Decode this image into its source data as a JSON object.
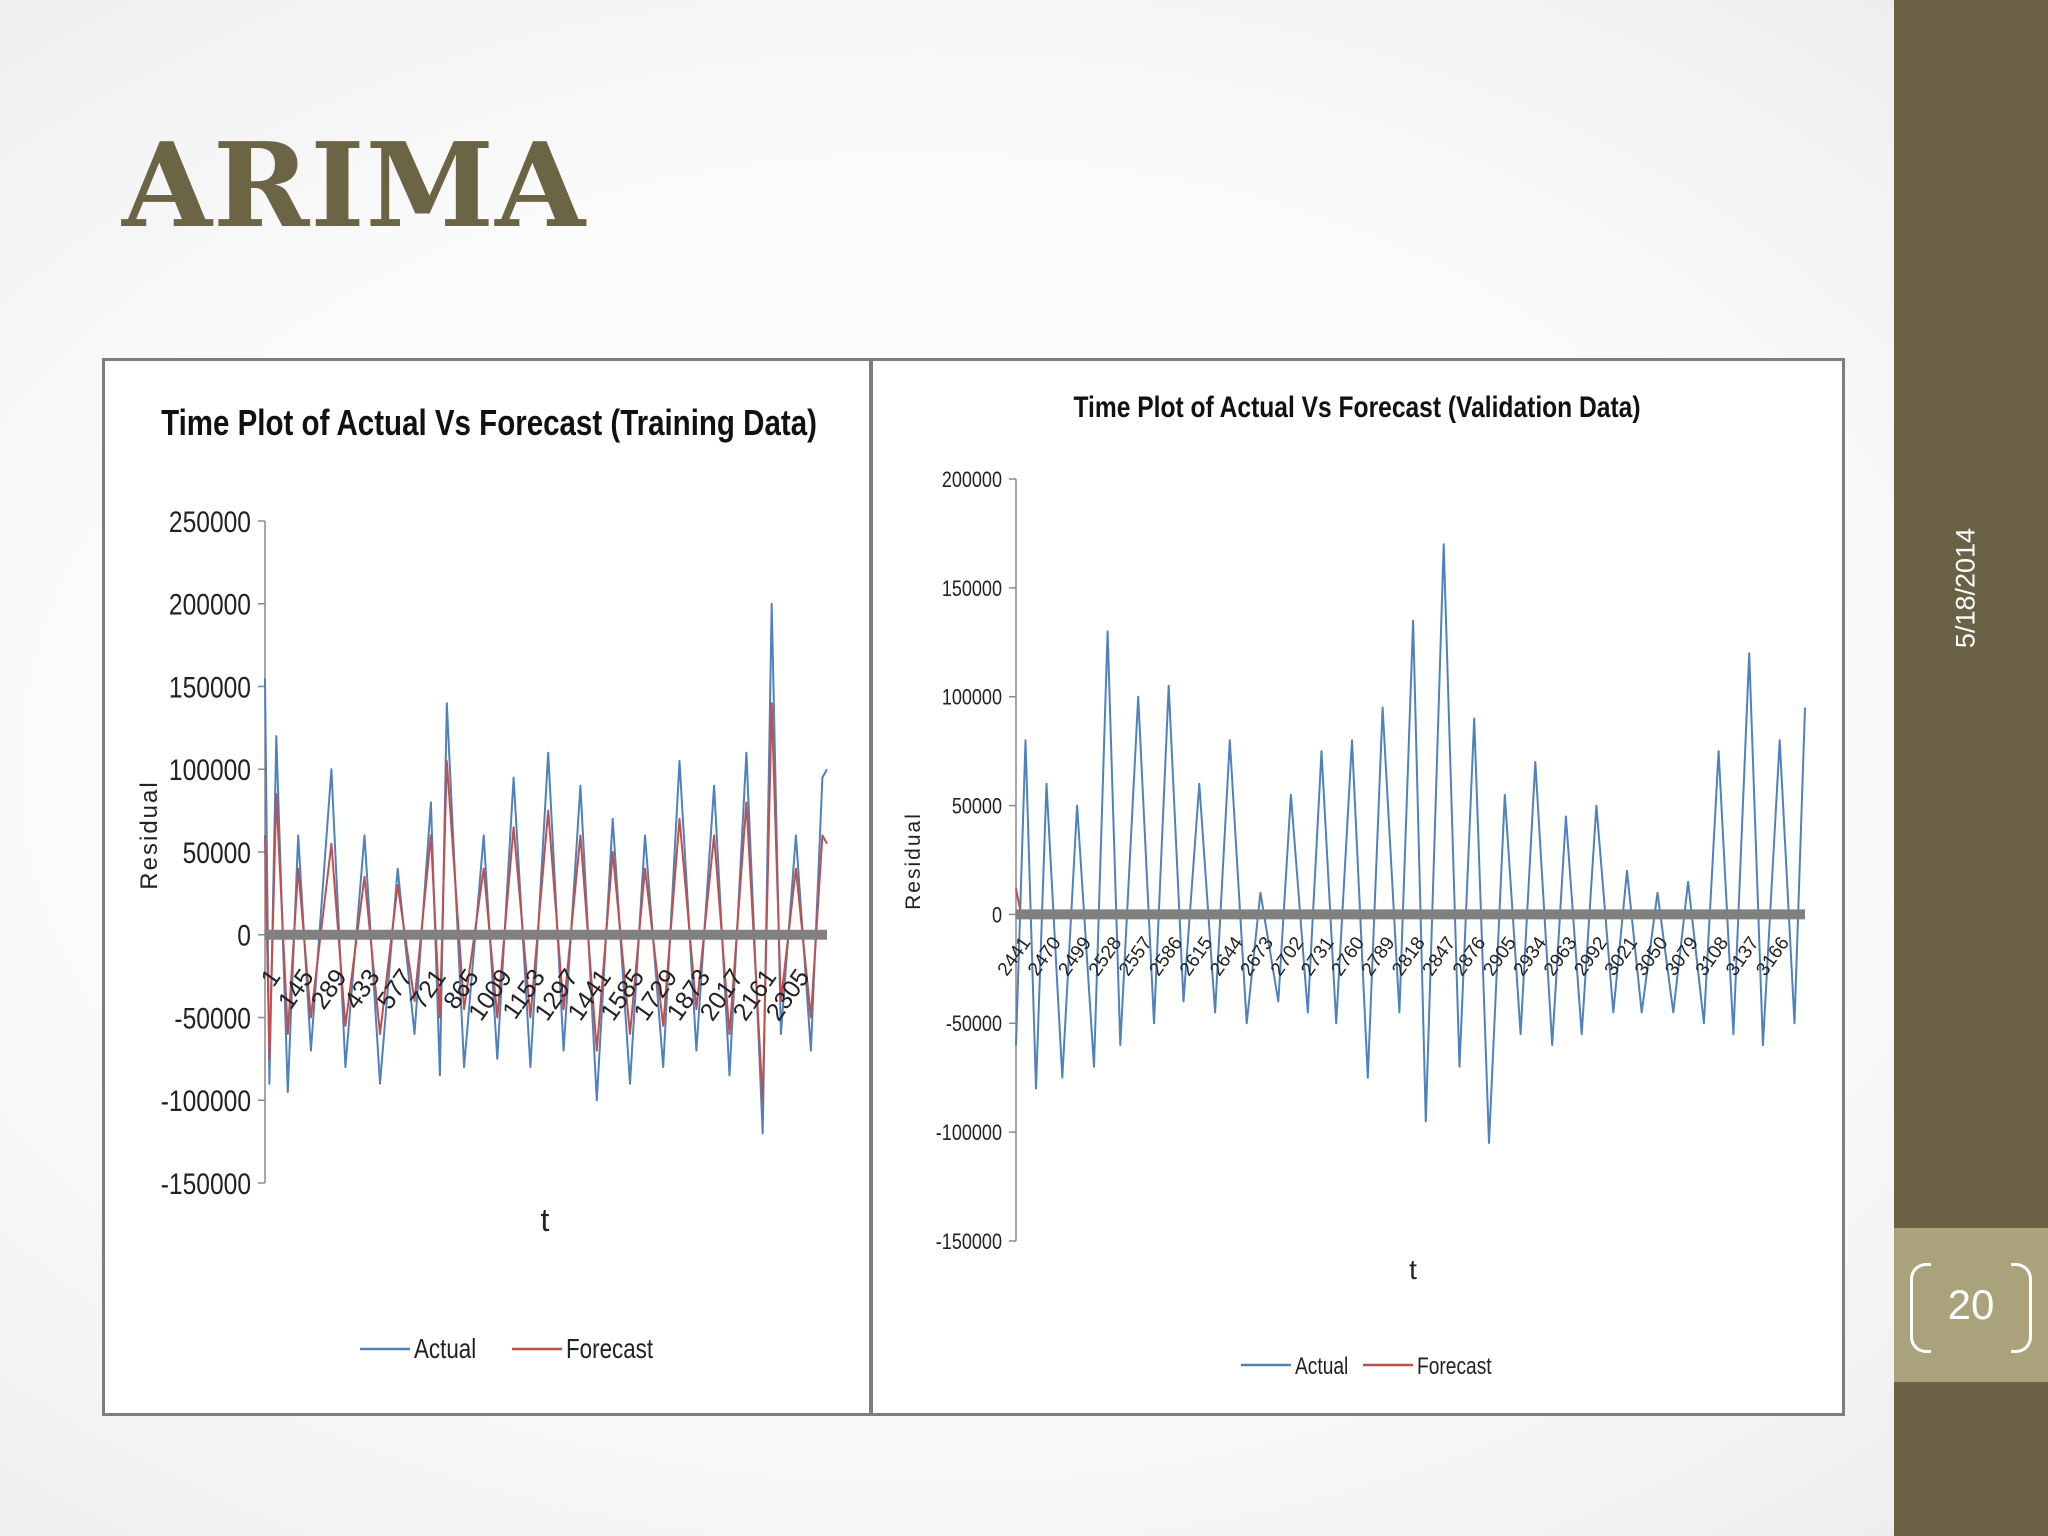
{
  "slide": {
    "title": "ARIMA",
    "date": "5/18/2014",
    "page_number": "20"
  },
  "colors": {
    "sidebar": "#6b6145",
    "page_box": "#a9a27a",
    "title": "#6b6445",
    "actual": "#4f81bd",
    "forecast": "#c0504d",
    "baseline": "#808080"
  },
  "chart_data": [
    {
      "type": "line",
      "title": "Time Plot of Actual Vs Forecast (Training Data)",
      "xlabel": "t",
      "ylabel": "Residual",
      "ylim": [
        -150000,
        250000
      ],
      "yticks": [
        -150000,
        -100000,
        -50000,
        0,
        50000,
        100000,
        150000,
        200000,
        250000
      ],
      "ytick_labels": [
        "-150000",
        "-100000",
        "-50000",
        "0",
        "50000",
        "100000",
        "150000",
        "200000",
        "250000"
      ],
      "xlim": [
        1,
        2440
      ],
      "xtick_labels": [
        "1",
        "145",
        "289",
        "433",
        "577",
        "721",
        "865",
        "1009",
        "1153",
        "1297",
        "1441",
        "1585",
        "1729",
        "1873",
        "2017",
        "2161",
        "2305"
      ],
      "legend": "bottom",
      "series": [
        {
          "name": "Actual",
          "color": "#4f81bd",
          "x": [
            1,
            20,
            50,
            100,
            145,
            200,
            289,
            350,
            433,
            500,
            577,
            650,
            721,
            760,
            790,
            865,
            950,
            1009,
            1080,
            1153,
            1230,
            1297,
            1370,
            1441,
            1510,
            1585,
            1650,
            1729,
            1800,
            1873,
            1950,
            2017,
            2090,
            2161,
            2200,
            2240,
            2305,
            2370,
            2420,
            2440
          ],
          "values": [
            155000,
            -90000,
            120000,
            -95000,
            60000,
            -70000,
            100000,
            -80000,
            60000,
            -90000,
            40000,
            -60000,
            80000,
            -85000,
            140000,
            -80000,
            60000,
            -75000,
            95000,
            -80000,
            110000,
            -70000,
            90000,
            -100000,
            70000,
            -90000,
            60000,
            -80000,
            105000,
            -70000,
            90000,
            -85000,
            110000,
            -120000,
            200000,
            -60000,
            60000,
            -70000,
            95000,
            100000
          ]
        },
        {
          "name": "Forecast",
          "color": "#c0504d",
          "x": [
            1,
            20,
            50,
            100,
            145,
            200,
            289,
            350,
            433,
            500,
            577,
            650,
            721,
            760,
            790,
            865,
            950,
            1009,
            1080,
            1153,
            1230,
            1297,
            1370,
            1441,
            1510,
            1585,
            1650,
            1729,
            1800,
            1873,
            1950,
            2017,
            2090,
            2161,
            2200,
            2240,
            2305,
            2370,
            2420,
            2440
          ],
          "values": [
            60000,
            -75000,
            85000,
            -60000,
            40000,
            -50000,
            55000,
            -55000,
            35000,
            -60000,
            30000,
            -40000,
            60000,
            -50000,
            105000,
            -45000,
            40000,
            -50000,
            65000,
            -50000,
            75000,
            -45000,
            60000,
            -70000,
            50000,
            -60000,
            40000,
            -55000,
            70000,
            -45000,
            60000,
            -60000,
            80000,
            -100000,
            140000,
            -40000,
            40000,
            -50000,
            60000,
            55000
          ]
        }
      ]
    },
    {
      "type": "line",
      "title": "Time Plot of Actual Vs Forecast (Validation Data)",
      "xlabel": "t",
      "ylabel": "Residual",
      "ylim": [
        -150000,
        200000
      ],
      "yticks": [
        -150000,
        -100000,
        -50000,
        0,
        50000,
        100000,
        150000,
        200000
      ],
      "ytick_labels": [
        "-150000",
        "-100000",
        "-50000",
        "0",
        "50000",
        "100000",
        "150000",
        "200000"
      ],
      "xlim": [
        2441,
        3190
      ],
      "xtick_labels": [
        "2441",
        "2470",
        "2499",
        "2528",
        "2557",
        "2586",
        "2615",
        "2644",
        "2673",
        "2702",
        "2731",
        "2760",
        "2789",
        "2818",
        "2847",
        "2876",
        "2905",
        "2934",
        "2963",
        "2992",
        "3021",
        "3050",
        "3079",
        "3108",
        "3137",
        "3166"
      ],
      "legend": "bottom",
      "series": [
        {
          "name": "Actual",
          "color": "#4f81bd",
          "x": [
            2441,
            2450,
            2460,
            2470,
            2485,
            2499,
            2515,
            2528,
            2540,
            2557,
            2572,
            2586,
            2600,
            2615,
            2630,
            2644,
            2660,
            2673,
            2690,
            2702,
            2718,
            2731,
            2745,
            2760,
            2775,
            2789,
            2805,
            2818,
            2830,
            2847,
            2862,
            2876,
            2890,
            2905,
            2920,
            2934,
            2950,
            2963,
            2978,
            2992,
            3008,
            3021,
            3035,
            3050,
            3065,
            3079,
            3094,
            3108,
            3122,
            3137,
            3150,
            3166,
            3180,
            3190
          ],
          "values": [
            -60000,
            80000,
            -80000,
            60000,
            -75000,
            50000,
            -70000,
            130000,
            -60000,
            100000,
            -50000,
            105000,
            -40000,
            60000,
            -45000,
            80000,
            -50000,
            10000,
            -40000,
            55000,
            -45000,
            75000,
            -50000,
            80000,
            -75000,
            95000,
            -45000,
            135000,
            -95000,
            170000,
            -70000,
            90000,
            -105000,
            55000,
            -55000,
            70000,
            -60000,
            45000,
            -55000,
            50000,
            -45000,
            20000,
            -45000,
            10000,
            -45000,
            15000,
            -50000,
            75000,
            -55000,
            120000,
            -60000,
            80000,
            -50000,
            95000
          ]
        },
        {
          "name": "Forecast",
          "color": "#c0504d",
          "x": [
            2441,
            2445,
            2450,
            2460,
            2600,
            2800,
            3000,
            3190
          ],
          "values": [
            12000,
            2000,
            -1000,
            0,
            0,
            0,
            0,
            0
          ]
        }
      ]
    }
  ]
}
